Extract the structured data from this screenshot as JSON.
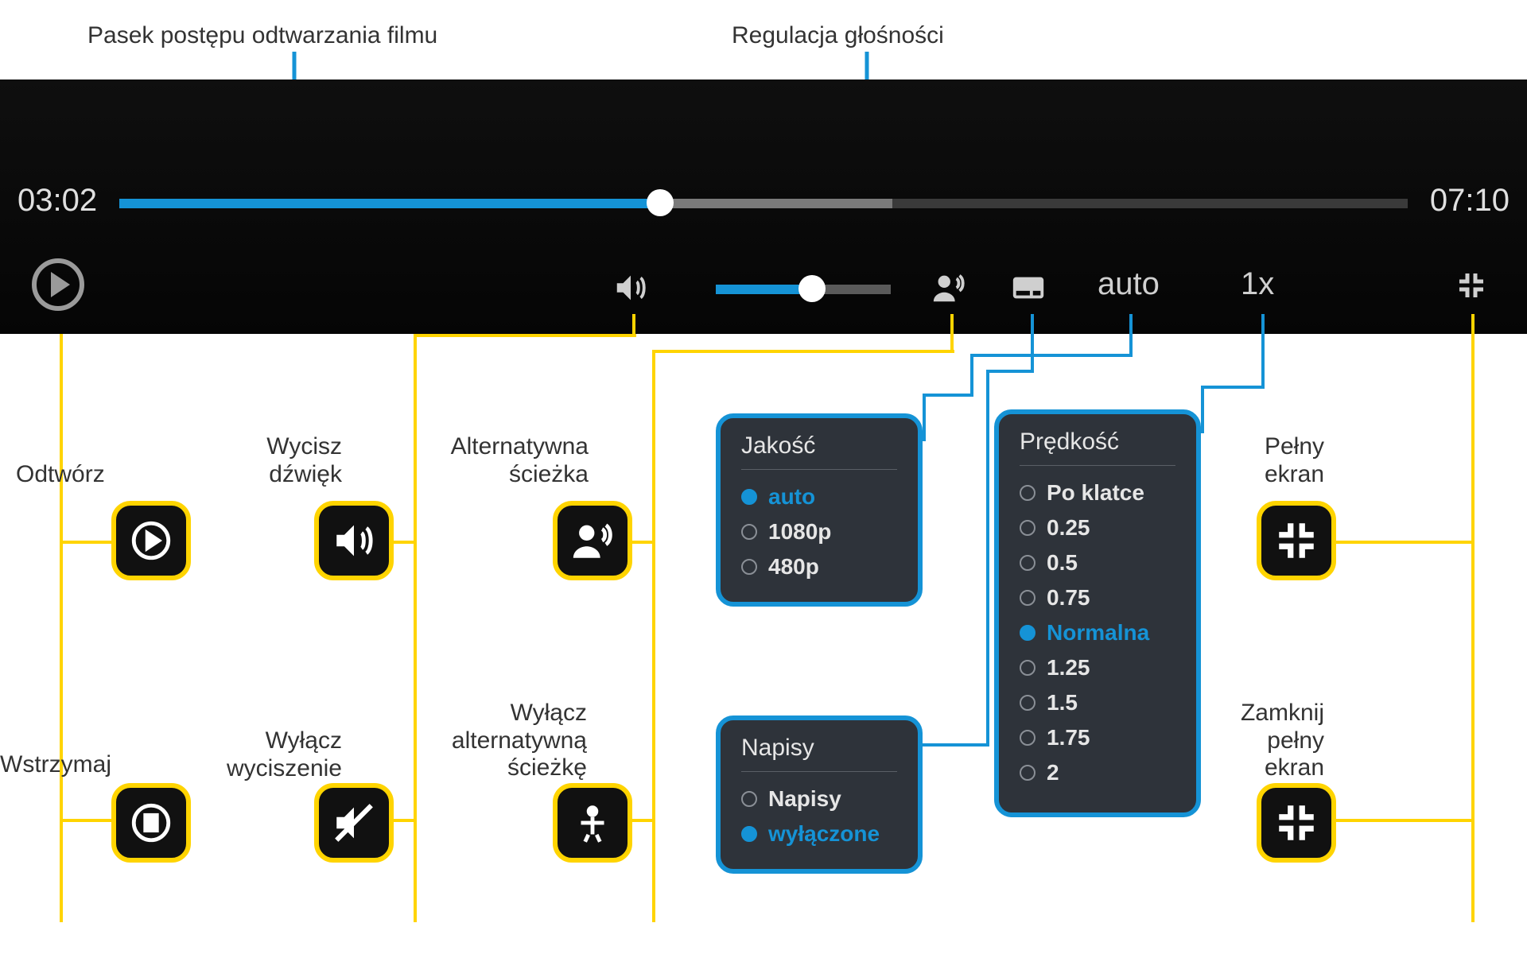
{
  "colors": {
    "accent": "#1593d6",
    "highlight": "#ffd400",
    "player_bg": "#0a0a0a",
    "panel_bg": "#2e333a",
    "text_dark": "#333333",
    "text_light": "#e0e0e0",
    "track_bg": "#3a3a3a",
    "track_buffered": "#7a7a7a"
  },
  "callouts": {
    "progress": "Pasek postępu odtwarzania filmu",
    "volume": "Regulacja głośności"
  },
  "player": {
    "current_time": "03:02",
    "total_time": "07:10",
    "progress": {
      "played_pct": 42,
      "buffered_pct": 60
    },
    "volume": {
      "level_pct": 55
    },
    "quality_label": "auto",
    "speed_label": "1x"
  },
  "controls": {
    "play": {
      "label": "Odtwórz"
    },
    "pause": {
      "label": "Wstrzymaj"
    },
    "mute": {
      "label": "Wycisz dźwięk"
    },
    "unmute": {
      "label": "Wyłącz wyciszenie"
    },
    "alt_track": {
      "label": "Alternatywna ścieżka"
    },
    "alt_track_off": {
      "label": "Wyłącz alternatywną ścieżkę"
    },
    "fullscreen": {
      "label": "Pełny ekran"
    },
    "fullscreen_exit": {
      "label": "Zamknij pełny ekran"
    }
  },
  "panels": {
    "quality": {
      "title": "Jakość",
      "options": [
        {
          "label": "auto",
          "selected": true
        },
        {
          "label": "1080p",
          "selected": false
        },
        {
          "label": "480p",
          "selected": false
        }
      ]
    },
    "subtitles": {
      "title": "Napisy",
      "options": [
        {
          "label": "Napisy",
          "selected": false
        },
        {
          "label": "wyłączone",
          "selected": true
        }
      ]
    },
    "speed": {
      "title": "Prędkość",
      "options": [
        {
          "label": "Po klatce",
          "selected": false
        },
        {
          "label": "0.25",
          "selected": false
        },
        {
          "label": "0.5",
          "selected": false
        },
        {
          "label": "0.75",
          "selected": false
        },
        {
          "label": "Normalna",
          "selected": true
        },
        {
          "label": "1.25",
          "selected": false
        },
        {
          "label": "1.5",
          "selected": false
        },
        {
          "label": "1.75",
          "selected": false
        },
        {
          "label": "2",
          "selected": false
        }
      ]
    }
  }
}
